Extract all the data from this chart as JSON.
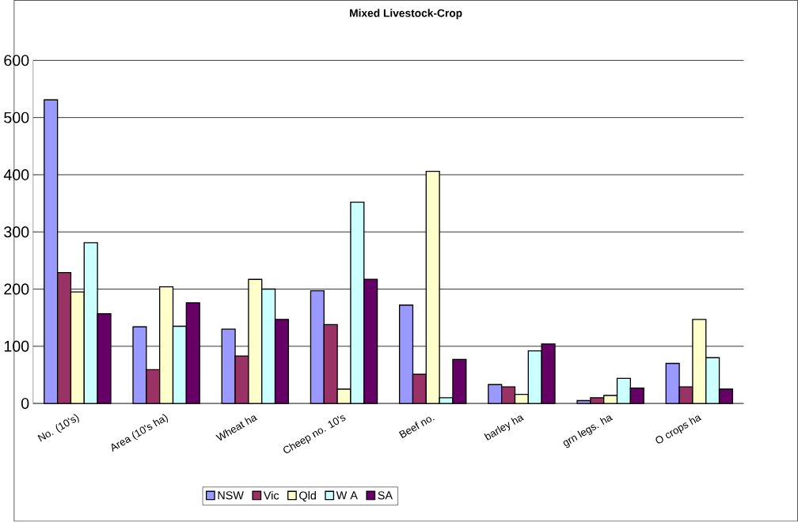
{
  "chart_data": {
    "type": "bar",
    "title": "Mixed Livestock-Crop",
    "categories": [
      "No. (10's)",
      "Area (10's ha)",
      "Wheat ha",
      "Cheep no. 10's",
      "Beef no.",
      "barley ha",
      "grn legs. ha",
      "O crops ha"
    ],
    "series": [
      {
        "name": "NSW",
        "color": "#9999ff",
        "values": [
          531,
          134,
          130,
          197,
          172,
          33,
          5,
          70
        ]
      },
      {
        "name": "Vic",
        "color": "#993366",
        "values": [
          229,
          59,
          83,
          138,
          51,
          29,
          10,
          29
        ]
      },
      {
        "name": "Qld",
        "color": "#ffffcc",
        "values": [
          195,
          204,
          217,
          25,
          406,
          16,
          14,
          147
        ]
      },
      {
        "name": "W A",
        "color": "#ccffff",
        "values": [
          281,
          135,
          200,
          352,
          10,
          92,
          44,
          80
        ]
      },
      {
        "name": "SA",
        "color": "#660066",
        "values": [
          157,
          176,
          147,
          217,
          77,
          104,
          27,
          25
        ]
      }
    ],
    "ylim": [
      0,
      600
    ],
    "yticks": [
      0,
      100,
      200,
      300,
      400,
      500,
      600
    ],
    "grid": "y",
    "legend": "bottom"
  }
}
